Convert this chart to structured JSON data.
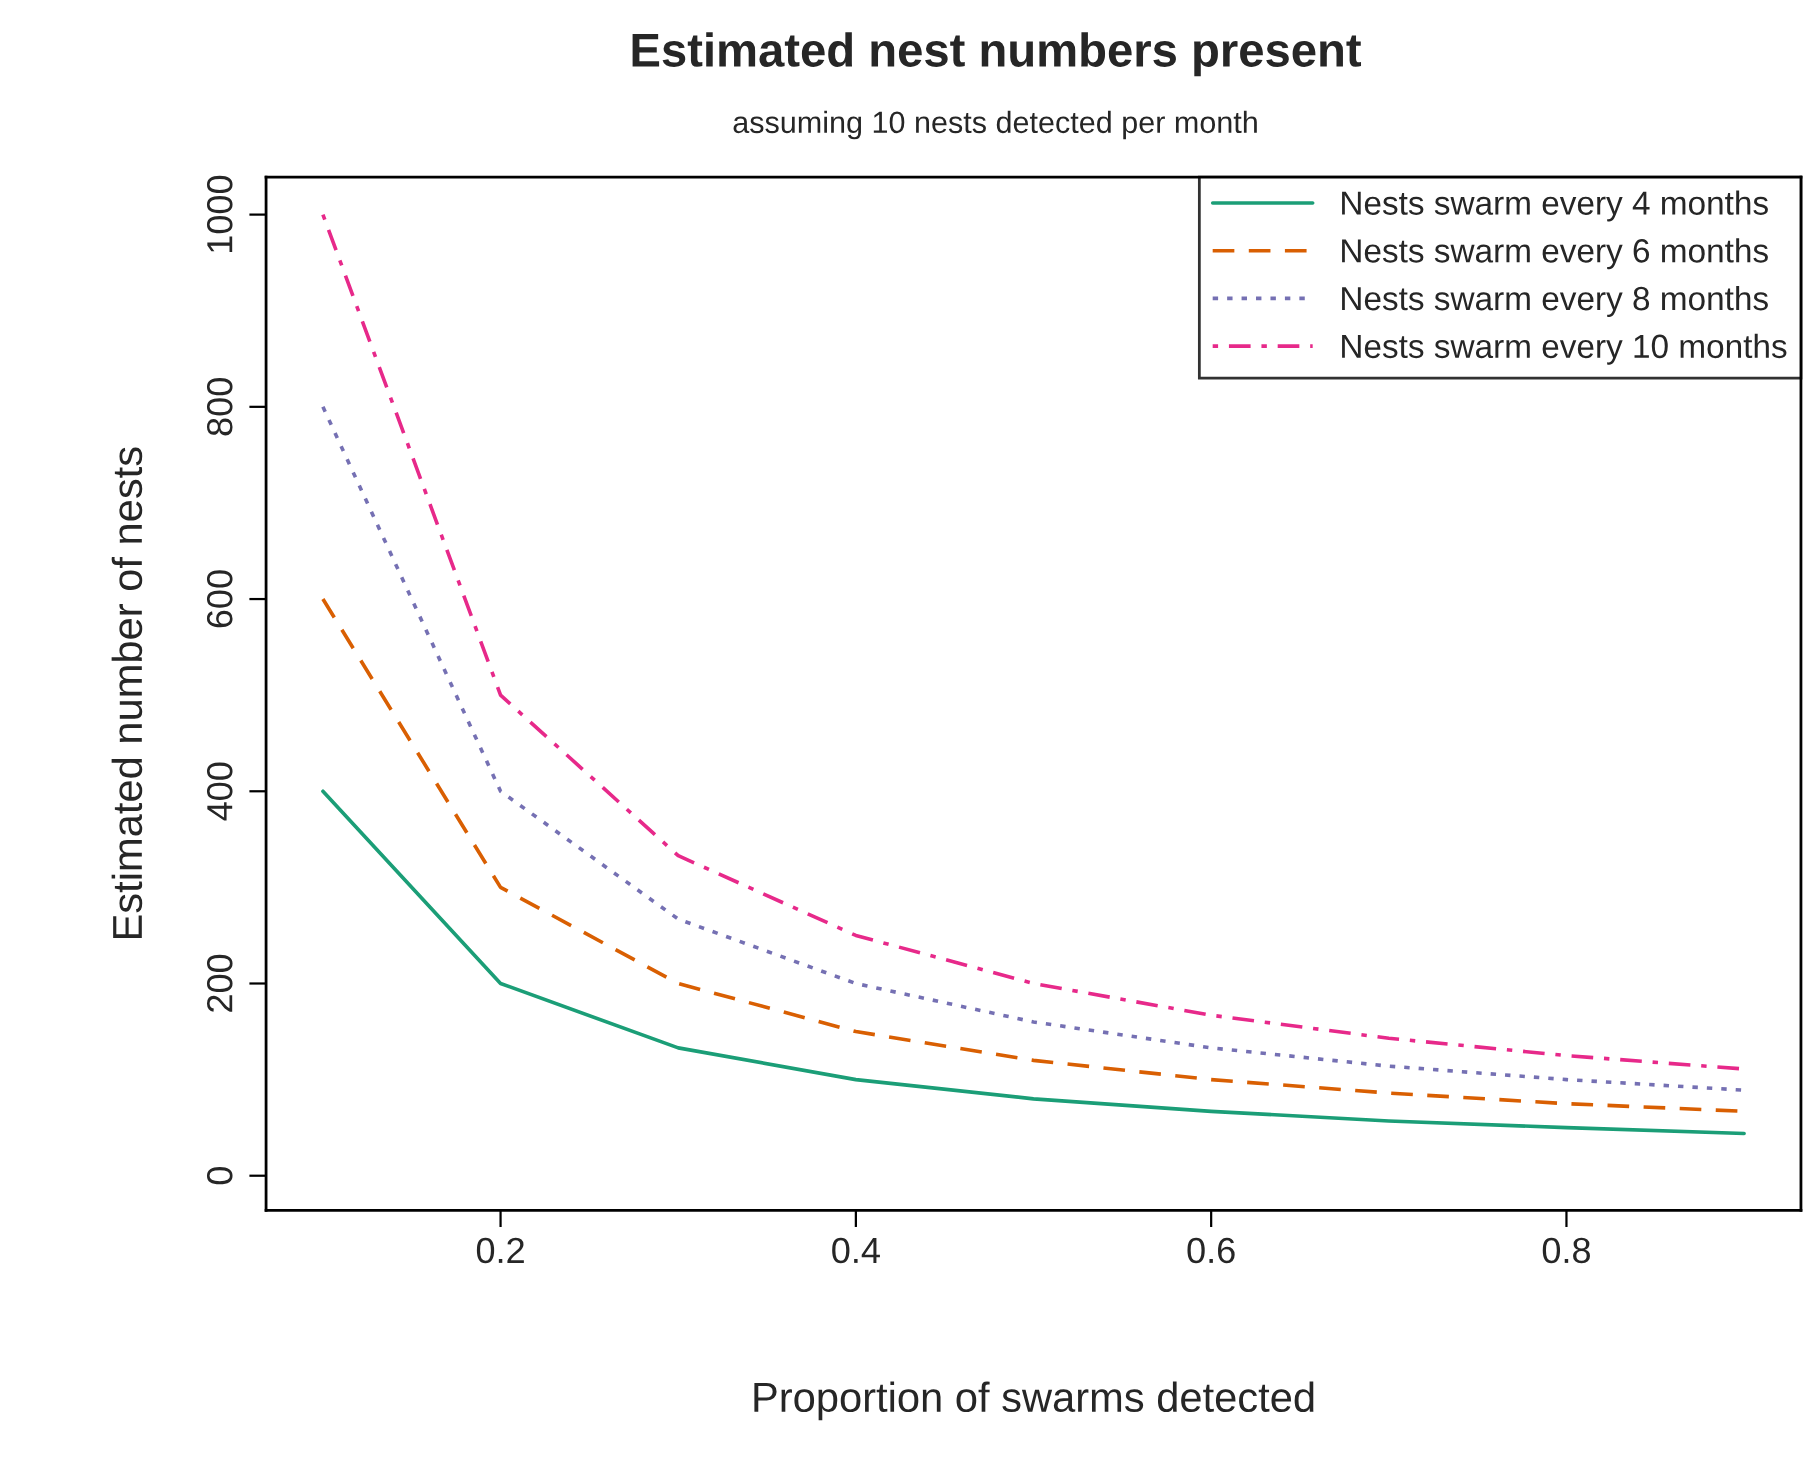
{
  "chart_data": {
    "type": "line",
    "title": "Estimated nest numbers present",
    "subtitle": "assuming 10 nests detected per month",
    "xlabel": "Proportion of swarms detected",
    "ylabel": "Estimated number of nests",
    "x": [
      0.1,
      0.2,
      0.3,
      0.4,
      0.5,
      0.6,
      0.7,
      0.8,
      0.9
    ],
    "series": [
      {
        "name": "Nests swarm every 4 months",
        "color": "#1b9e77",
        "line_style": "solid",
        "values": [
          400,
          200,
          133,
          100,
          80,
          67,
          57,
          50,
          44
        ]
      },
      {
        "name": "Nests swarm every 6 months",
        "color": "#d95f02",
        "line_style": "dashed",
        "values": [
          600,
          300,
          200,
          150,
          120,
          100,
          86,
          75,
          67
        ]
      },
      {
        "name": "Nests swarm every 8 months",
        "color": "#7570b3",
        "line_style": "dotted",
        "values": [
          800,
          400,
          267,
          200,
          160,
          133,
          114,
          100,
          89
        ]
      },
      {
        "name": "Nests swarm every 10 months",
        "color": "#e7298a",
        "line_style": "dashdot",
        "values": [
          1000,
          500,
          333,
          250,
          200,
          167,
          143,
          125,
          111
        ]
      }
    ],
    "xlim": [
      0.068,
      0.932
    ],
    "ylim": [
      -36,
      1039
    ],
    "xticks": [
      0.2,
      0.4,
      0.6,
      0.8
    ],
    "yticks": [
      0,
      200,
      400,
      600,
      800,
      1000
    ],
    "grid": false,
    "legend": "top right",
    "marker": "none"
  }
}
